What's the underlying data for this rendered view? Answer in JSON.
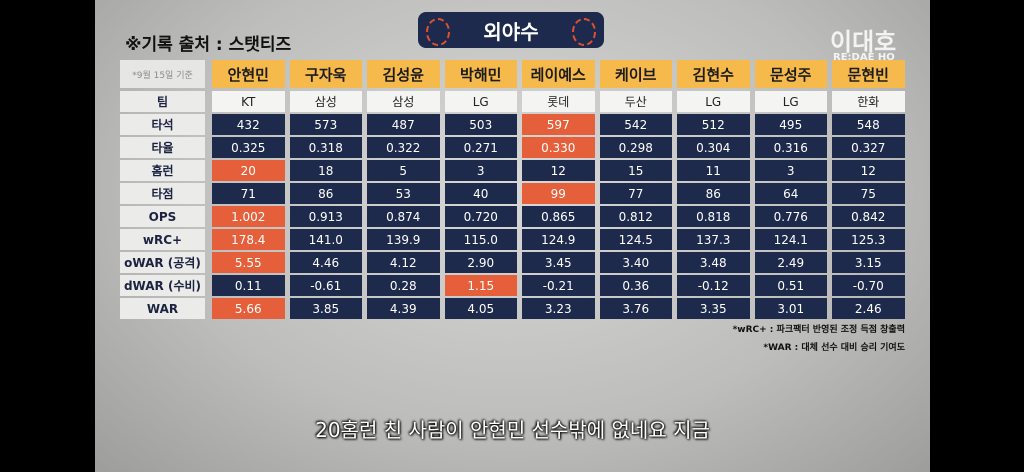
{
  "source": "※기록 출처 : 스탯티즈",
  "title": "외야수",
  "logo": {
    "main": "이대호",
    "sub": "RE:DAE HO"
  },
  "table": {
    "corner": "*9월 15일 기준",
    "columns": [
      "안현민",
      "구자욱",
      "김성윤",
      "박해민",
      "레이예스",
      "케이브",
      "김현수",
      "문성주",
      "문현빈"
    ],
    "rows": [
      {
        "label": "팀",
        "cells": [
          "KT",
          "삼성",
          "삼성",
          "LG",
          "롯데",
          "두산",
          "LG",
          "LG",
          "한화"
        ]
      },
      {
        "label": "타석",
        "cells": [
          "432",
          "573",
          "487",
          "503",
          "597",
          "542",
          "512",
          "495",
          "548"
        ]
      },
      {
        "label": "타율",
        "cells": [
          "0.325",
          "0.318",
          "0.322",
          "0.271",
          "0.330",
          "0.298",
          "0.304",
          "0.316",
          "0.327"
        ]
      },
      {
        "label": "홈런",
        "cells": [
          "20",
          "18",
          "5",
          "3",
          "12",
          "15",
          "11",
          "3",
          "12"
        ]
      },
      {
        "label": "타점",
        "cells": [
          "71",
          "86",
          "53",
          "40",
          "99",
          "77",
          "86",
          "64",
          "75"
        ]
      },
      {
        "label": "OPS",
        "cells": [
          "1.002",
          "0.913",
          "0.874",
          "0.720",
          "0.865",
          "0.812",
          "0.818",
          "0.776",
          "0.842"
        ]
      },
      {
        "label": "wRC+",
        "cells": [
          "178.4",
          "141.0",
          "139.9",
          "115.0",
          "124.9",
          "124.5",
          "137.3",
          "124.1",
          "125.3"
        ]
      },
      {
        "label": "oWAR (공격)",
        "cells": [
          "5.55",
          "4.46",
          "4.12",
          "2.90",
          "3.45",
          "3.40",
          "3.48",
          "2.49",
          "3.15"
        ]
      },
      {
        "label": "dWAR (수비)",
        "cells": [
          "0.11",
          "-0.61",
          "0.28",
          "1.15",
          "-0.21",
          "0.36",
          "-0.12",
          "0.51",
          "-0.70"
        ]
      },
      {
        "label": "WAR",
        "cells": [
          "5.66",
          "3.85",
          "4.39",
          "4.05",
          "3.23",
          "3.76",
          "3.35",
          "3.01",
          "2.46"
        ]
      }
    ]
  },
  "footnotes": [
    "*wRC+ : 파크팩터 반영된 조정 득점 창출력",
    "*WAR : 대체 선수 대비 승리 기여도"
  ],
  "caption": "20홈런 친 사람이 안현민 선수밖에 없네요 지금"
}
